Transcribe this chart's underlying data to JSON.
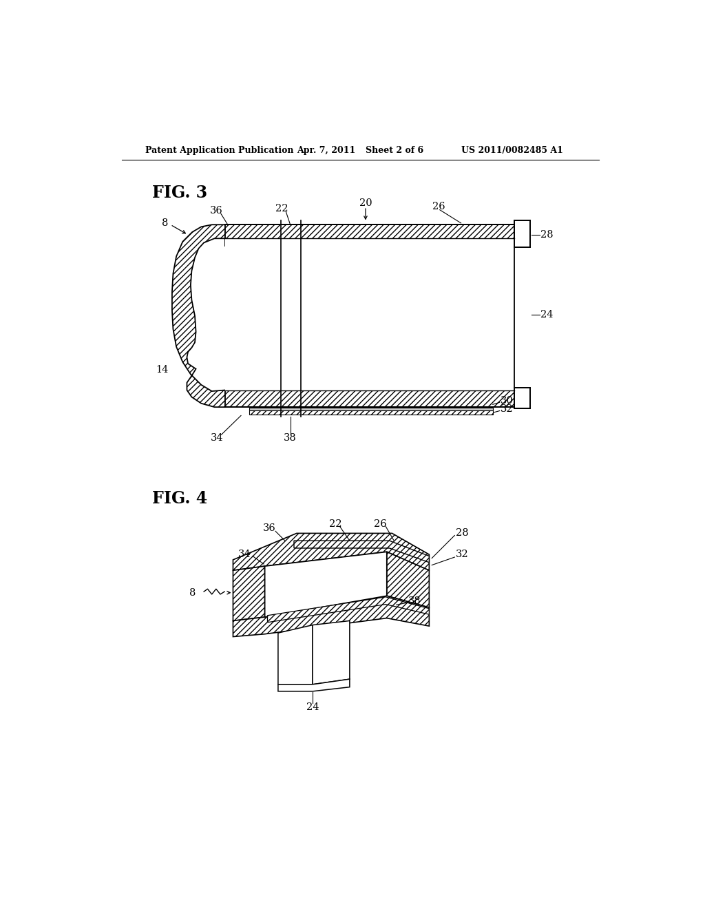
{
  "bg_color": "#ffffff",
  "header_text": "Patent Application Publication",
  "header_date": "Apr. 7, 2011",
  "header_sheet": "Sheet 2 of 6",
  "header_patent": "US 2011/0082485 A1",
  "fig3_label": "FIG. 3",
  "fig4_label": "FIG. 4",
  "line_color": "#000000"
}
